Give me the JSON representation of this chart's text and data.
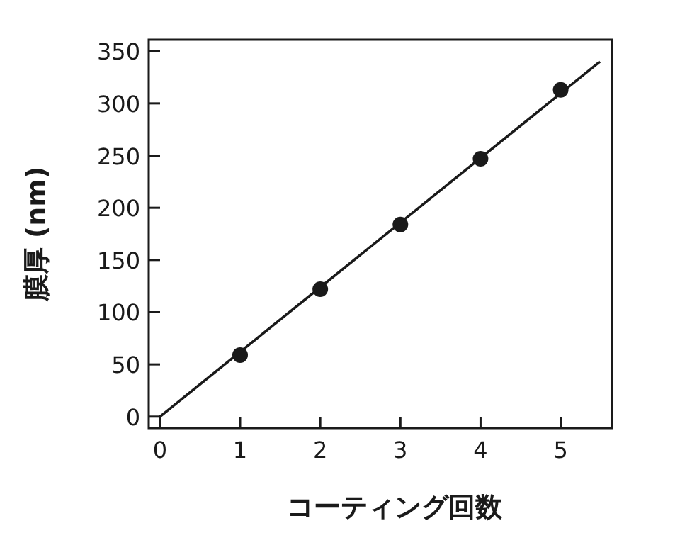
{
  "chart_data": {
    "type": "scatter",
    "xlabel": "コーティング回数",
    "ylabel": "膜厚 (nm)",
    "series": [
      {
        "color": "#1a1a1a",
        "marker": "circle",
        "x": [
          1,
          2,
          3,
          4,
          5
        ],
        "values": [
          59,
          122,
          184,
          247,
          313
        ]
      },
      {
        "type": "line",
        "color": "#1a1a1a",
        "x": [
          0,
          5.49
        ],
        "values": [
          0,
          340
        ]
      }
    ],
    "xlim": [
      -0.14,
      5.64
    ],
    "ylim": [
      -11,
      361
    ],
    "xticks": [
      0,
      1,
      2,
      3,
      4,
      5
    ],
    "yticks": [
      0,
      50,
      100,
      150,
      200,
      250,
      300,
      350
    ]
  }
}
